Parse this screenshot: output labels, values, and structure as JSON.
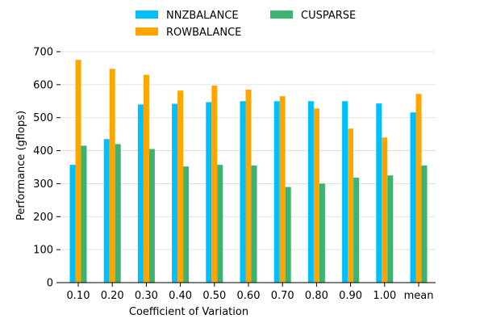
{
  "chart_data": {
    "type": "bar",
    "title": "",
    "xlabel": "Coefficient of Variation",
    "ylabel": "Performance (gflops)",
    "categories": [
      "0.10",
      "0.20",
      "0.30",
      "0.40",
      "0.50",
      "0.60",
      "0.70",
      "0.80",
      "0.90",
      "1.00",
      "mean"
    ],
    "ylim": [
      0,
      700
    ],
    "yticks": [
      0,
      100,
      200,
      300,
      400,
      500,
      600,
      700
    ],
    "grid": "horizontal",
    "legend_position": "top-center",
    "series": [
      {
        "name": "NNZBALANCE",
        "color": "#00bfff",
        "values": [
          357,
          435,
          540,
          542,
          547,
          550,
          550,
          550,
          550,
          543,
          516
        ]
      },
      {
        "name": "ROWBALANCE",
        "color": "#ffa500",
        "values": [
          675,
          648,
          630,
          582,
          597,
          585,
          565,
          528,
          467,
          440,
          572
        ]
      },
      {
        "name": "CUSPARSE",
        "color": "#3cb371",
        "values": [
          415,
          420,
          405,
          352,
          357,
          355,
          290,
          300,
          318,
          325,
          355
        ]
      }
    ]
  }
}
